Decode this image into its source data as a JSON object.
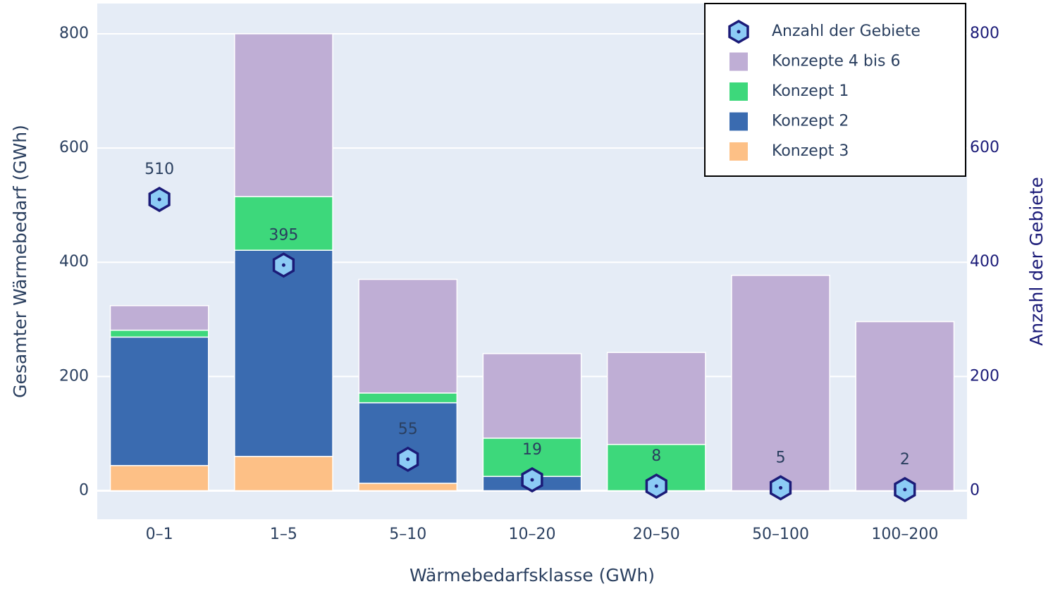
{
  "chart_data": {
    "type": "bar",
    "barmode": "stack",
    "x_label": "Wärmebedarfsklasse (GWh)",
    "y_label": "Gesamter Wärmebedarf (GWh)",
    "y2_label": "Anzahl der Gebiete",
    "categories": [
      "0–1",
      "1–5",
      "5–10",
      "10–20",
      "20–50",
      "50–100",
      "100–200"
    ],
    "series": [
      {
        "name": "Anzahl der Gebiete",
        "type": "scatter",
        "axis": "y2",
        "color": "#8ccbf5",
        "edge_color": "#1b1b78",
        "values": [
          510,
          395,
          55,
          19,
          8,
          5,
          2
        ]
      },
      {
        "name": "Konzepte 4 bis 6",
        "type": "bar",
        "color": "#bfaed5",
        "values": [
          43,
          285,
          199,
          148,
          161,
          377,
          296
        ]
      },
      {
        "name": "Konzept 1",
        "type": "bar",
        "color": "#3dd87b",
        "values": [
          12,
          94,
          17,
          67,
          81,
          0,
          0
        ]
      },
      {
        "name": "Konzept 2",
        "type": "bar",
        "color": "#3a6bb0",
        "values": [
          225,
          361,
          141,
          25,
          0,
          0,
          0
        ]
      },
      {
        "name": "Konzept 3",
        "type": "bar",
        "color": "#fdc086",
        "values": [
          44,
          60,
          13,
          0,
          0,
          0,
          0
        ]
      }
    ],
    "ylim": [
      -50,
      853
    ],
    "yticks": [
      0,
      200,
      400,
      600,
      800
    ],
    "y2lim": [
      -50,
      853
    ],
    "y2ticks": [
      0,
      200,
      400,
      600,
      800
    ],
    "grid": true,
    "legend_position": "upper right"
  }
}
